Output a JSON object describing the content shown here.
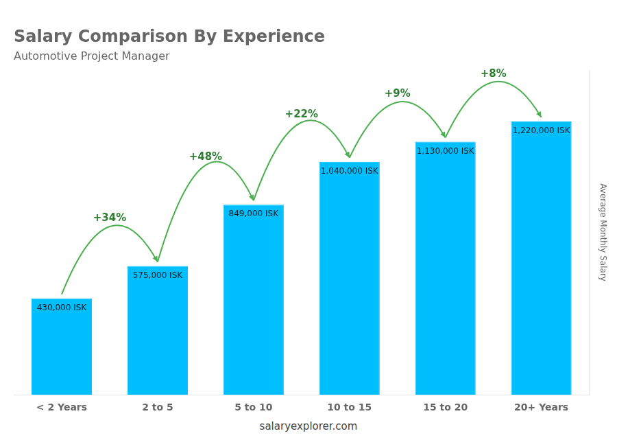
{
  "chart_data": {
    "type": "bar",
    "title": "Salary Comparison By Experience",
    "subtitle": "Automotive Project Manager",
    "ylabel": "Average Monthly Salary",
    "footer": "salaryexplorer.com",
    "categories": [
      "< 2 Years",
      "2 to 5",
      "5 to 10",
      "10 to 15",
      "15 to 20",
      "20+ Years"
    ],
    "values": [
      430000,
      575000,
      849000,
      1040000,
      1130000,
      1220000
    ],
    "value_labels": [
      "430,000 ISK",
      "575,000 ISK",
      "849,000 ISK",
      "1,040,000 ISK",
      "1,130,000 ISK",
      "1,220,000 ISK"
    ],
    "data_labels": true,
    "annotations": [
      "+34%",
      "+48%",
      "+22%",
      "+9%",
      "+8%"
    ],
    "color": "#00BFFF",
    "ylim": [
      0,
      1450000
    ],
    "tick_labels": "x",
    "grid": false
  }
}
